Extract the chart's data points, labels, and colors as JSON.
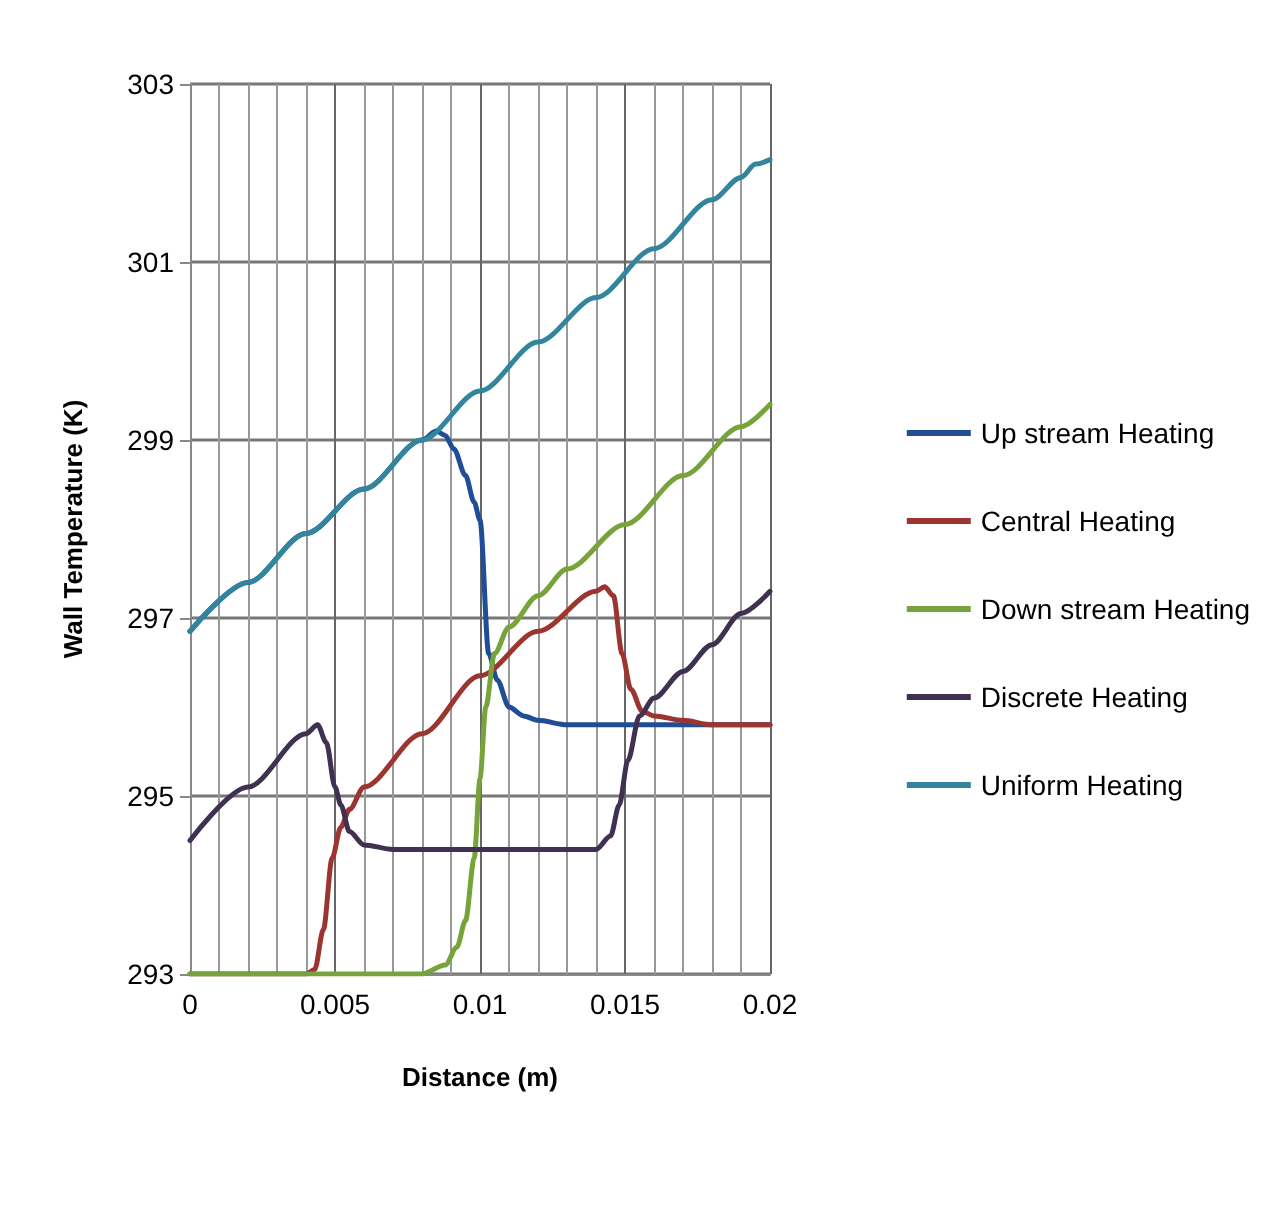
{
  "chart_data": {
    "type": "line",
    "xlabel": "Distance (m)",
    "ylabel": "Wall Temperature (K)",
    "xlim": [
      0,
      0.02
    ],
    "xticks": [
      0,
      0.005,
      0.01,
      0.015,
      0.02
    ],
    "ylim": [
      293,
      303
    ],
    "yticks": [
      293,
      295,
      297,
      299,
      301,
      303
    ],
    "grid": true,
    "legend": "right",
    "marker": "none",
    "line_style": "solid",
    "series": [
      {
        "name": "Up stream Heating",
        "color": "#1f4e96",
        "x": [
          0,
          0.002,
          0.004,
          0.006,
          0.008,
          0.0085,
          0.0088,
          0.0091,
          0.0095,
          0.0098,
          0.01,
          0.0103,
          0.0106,
          0.011,
          0.0115,
          0.012,
          0.013,
          0.015,
          0.02
        ],
        "values": [
          296.85,
          297.4,
          297.95,
          298.45,
          299.0,
          299.1,
          299.05,
          298.9,
          298.6,
          298.3,
          298.1,
          296.6,
          296.3,
          296.0,
          295.9,
          295.85,
          295.8,
          295.8,
          295.8
        ]
      },
      {
        "name": "Central Heating",
        "color": "#9c3530",
        "x": [
          0,
          0.002,
          0.004,
          0.0043,
          0.0046,
          0.0049,
          0.0052,
          0.0055,
          0.006,
          0.008,
          0.01,
          0.012,
          0.014,
          0.0143,
          0.0146,
          0.0149,
          0.0152,
          0.0156,
          0.016,
          0.017,
          0.018,
          0.02
        ],
        "values": [
          293,
          293,
          293,
          293.05,
          293.5,
          294.3,
          294.65,
          294.85,
          295.1,
          295.7,
          296.35,
          296.85,
          297.3,
          297.35,
          297.25,
          296.6,
          296.2,
          295.95,
          295.9,
          295.85,
          295.8,
          295.8
        ]
      },
      {
        "name": "Down stream Heating",
        "color": "#76a33a",
        "x": [
          0,
          0.004,
          0.008,
          0.0088,
          0.0092,
          0.0095,
          0.0098,
          0.01,
          0.0102,
          0.0105,
          0.011,
          0.012,
          0.013,
          0.015,
          0.017,
          0.019,
          0.02
        ],
        "values": [
          293,
          293,
          293,
          293.1,
          293.3,
          293.6,
          294.3,
          295.2,
          296.0,
          296.6,
          296.9,
          297.25,
          297.55,
          298.05,
          298.6,
          299.15,
          299.4
        ]
      },
      {
        "name": "Discrete Heating",
        "color": "#403152",
        "x": [
          0,
          0.002,
          0.004,
          0.0044,
          0.0047,
          0.005,
          0.0052,
          0.0055,
          0.006,
          0.007,
          0.01,
          0.014,
          0.0145,
          0.0148,
          0.0151,
          0.0155,
          0.016,
          0.017,
          0.018,
          0.019,
          0.02
        ],
        "values": [
          294.5,
          295.1,
          295.7,
          295.8,
          295.6,
          295.1,
          294.9,
          294.6,
          294.45,
          294.4,
          294.4,
          294.4,
          294.55,
          294.9,
          295.4,
          295.9,
          296.1,
          296.4,
          296.7,
          297.05,
          297.3
        ]
      },
      {
        "name": "Uniform Heating",
        "color": "#31859c",
        "x": [
          0,
          0.002,
          0.004,
          0.006,
          0.008,
          0.01,
          0.012,
          0.014,
          0.016,
          0.018,
          0.019,
          0.0195,
          0.02
        ],
        "values": [
          296.85,
          297.4,
          297.95,
          298.45,
          299.0,
          299.55,
          300.1,
          300.6,
          301.15,
          301.7,
          301.95,
          302.1,
          302.15
        ]
      }
    ]
  }
}
